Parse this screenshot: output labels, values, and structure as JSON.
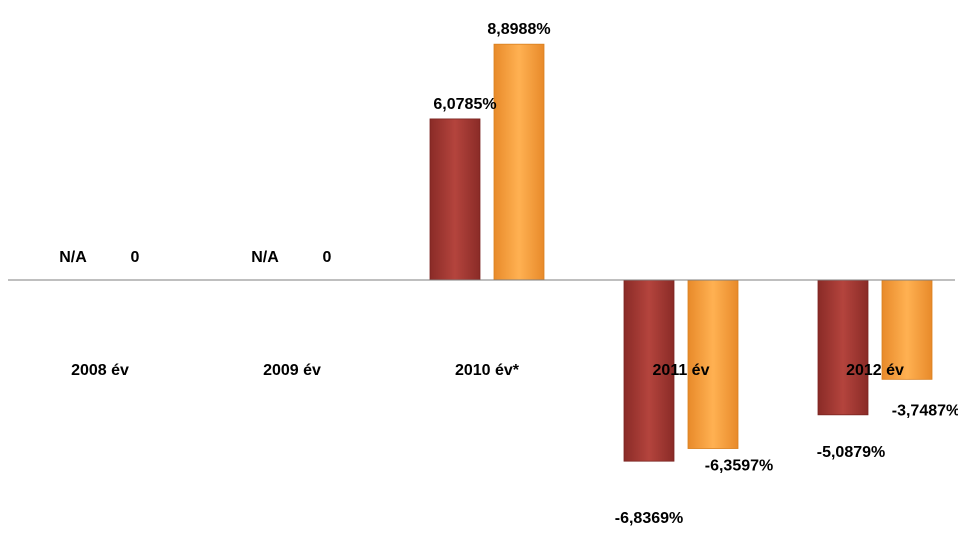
{
  "chart_data": {
    "type": "bar",
    "categories": [
      "2008 év",
      "2009 év",
      "2010 év*",
      "2011 év",
      "2012 év"
    ],
    "series": [
      {
        "color": "#a33a35",
        "values": [
          null,
          null,
          6.0785,
          -6.8369,
          -5.0879
        ],
        "labels": [
          "N/A",
          "N/A",
          "6,0785%",
          "-6,8369%",
          "-5,0879%"
        ]
      },
      {
        "color": "#f7a040",
        "values": [
          0,
          0,
          8.8988,
          -6.3597,
          -3.7487
        ],
        "labels": [
          "0",
          "0",
          "8,8988%",
          "-6,3597%",
          "-3,7487%"
        ]
      }
    ],
    "grid": false,
    "legend": "none"
  }
}
